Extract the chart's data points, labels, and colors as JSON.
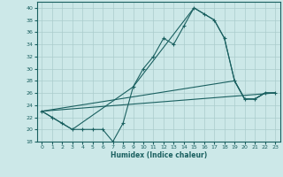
{
  "xlabel": "Humidex (Indice chaleur)",
  "bg_color": "#cce8e8",
  "grid_color": "#aacccc",
  "line_color": "#1a6060",
  "xlim": [
    -0.5,
    23.5
  ],
  "ylim": [
    18,
    41
  ],
  "xticks": [
    0,
    1,
    2,
    3,
    4,
    5,
    6,
    7,
    8,
    9,
    10,
    11,
    12,
    13,
    14,
    15,
    16,
    17,
    18,
    19,
    20,
    21,
    22,
    23
  ],
  "yticks": [
    18,
    20,
    22,
    24,
    26,
    28,
    30,
    32,
    34,
    36,
    38,
    40
  ],
  "series": [
    {
      "x": [
        0,
        1,
        2,
        3,
        4,
        5,
        6,
        7,
        8,
        9,
        10,
        11,
        12,
        13,
        14,
        15,
        16,
        17,
        18,
        19,
        20,
        21,
        22,
        23
      ],
      "y": [
        23,
        22,
        21,
        20,
        20,
        20,
        20,
        18,
        21,
        27,
        30,
        32,
        35,
        34,
        37,
        40,
        39,
        38,
        35,
        28,
        25,
        25,
        26,
        26
      ]
    },
    {
      "x": [
        0,
        1,
        2,
        3,
        9,
        15,
        16,
        17,
        18,
        19,
        20,
        21,
        22,
        23
      ],
      "y": [
        23,
        22,
        21,
        20,
        27,
        40,
        39,
        38,
        35,
        28,
        25,
        25,
        26,
        26
      ]
    },
    {
      "x": [
        0,
        23
      ],
      "y": [
        23,
        26
      ]
    },
    {
      "x": [
        0,
        19,
        20,
        21,
        22,
        23
      ],
      "y": [
        23,
        28,
        25,
        25,
        26,
        26
      ]
    }
  ]
}
